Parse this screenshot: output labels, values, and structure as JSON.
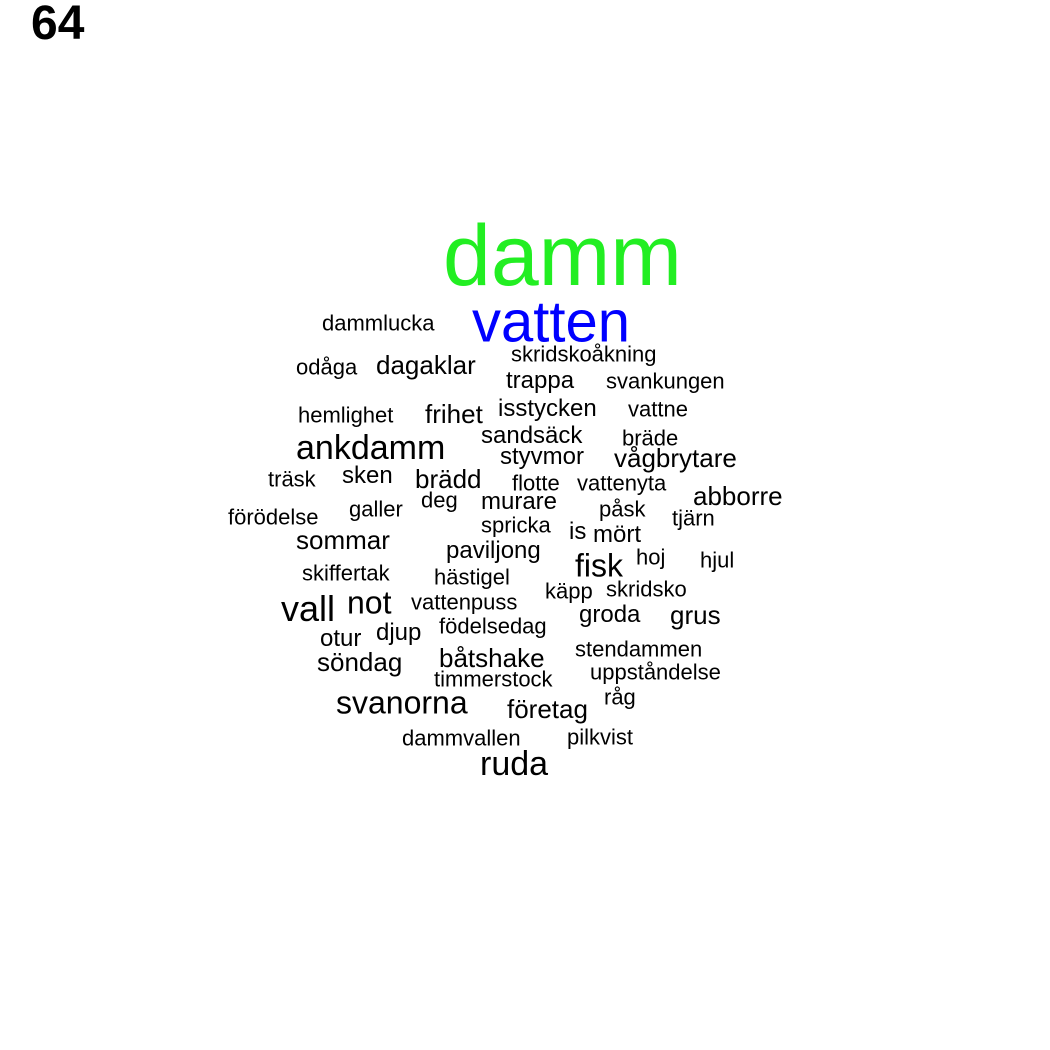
{
  "page_number": "64",
  "colors": {
    "primary": "#22ee22",
    "secondary": "#0000ff",
    "default": "#000000"
  },
  "words": [
    {
      "text": "damm",
      "color": "#22ee22"
    },
    {
      "text": "vatten",
      "color": "#0000ff"
    },
    {
      "text": "dammlucka"
    },
    {
      "text": "skridskoåkning"
    },
    {
      "text": "odåga"
    },
    {
      "text": "dagaklar"
    },
    {
      "text": "trappa"
    },
    {
      "text": "svankungen"
    },
    {
      "text": "hemlighet"
    },
    {
      "text": "frihet"
    },
    {
      "text": "isstycken"
    },
    {
      "text": "vattne"
    },
    {
      "text": "ankdamm"
    },
    {
      "text": "sandsäck"
    },
    {
      "text": "bräde"
    },
    {
      "text": "styvmor"
    },
    {
      "text": "vågbrytare"
    },
    {
      "text": "träsk"
    },
    {
      "text": "sken"
    },
    {
      "text": "brädd"
    },
    {
      "text": "flotte"
    },
    {
      "text": "vattenyta"
    },
    {
      "text": "abborre"
    },
    {
      "text": "galler"
    },
    {
      "text": "deg"
    },
    {
      "text": "murare"
    },
    {
      "text": "påsk"
    },
    {
      "text": "förödelse"
    },
    {
      "text": "spricka"
    },
    {
      "text": "is"
    },
    {
      "text": "tjärn"
    },
    {
      "text": "sommar"
    },
    {
      "text": "mört"
    },
    {
      "text": "paviljong"
    },
    {
      "text": "fisk"
    },
    {
      "text": "hoj"
    },
    {
      "text": "hjul"
    },
    {
      "text": "skiffertak"
    },
    {
      "text": "hästigel"
    },
    {
      "text": "käpp"
    },
    {
      "text": "skridsko"
    },
    {
      "text": "vall"
    },
    {
      "text": "not"
    },
    {
      "text": "vattenpuss"
    },
    {
      "text": "groda"
    },
    {
      "text": "grus"
    },
    {
      "text": "födelsedag"
    },
    {
      "text": "otur"
    },
    {
      "text": "djup"
    },
    {
      "text": "stendammen"
    },
    {
      "text": "söndag"
    },
    {
      "text": "båtshake"
    },
    {
      "text": "uppståndelse"
    },
    {
      "text": "timmerstock"
    },
    {
      "text": "råg"
    },
    {
      "text": "svanorna"
    },
    {
      "text": "företag"
    },
    {
      "text": "dammvallen"
    },
    {
      "text": "pilkvist"
    },
    {
      "text": "ruda"
    }
  ]
}
